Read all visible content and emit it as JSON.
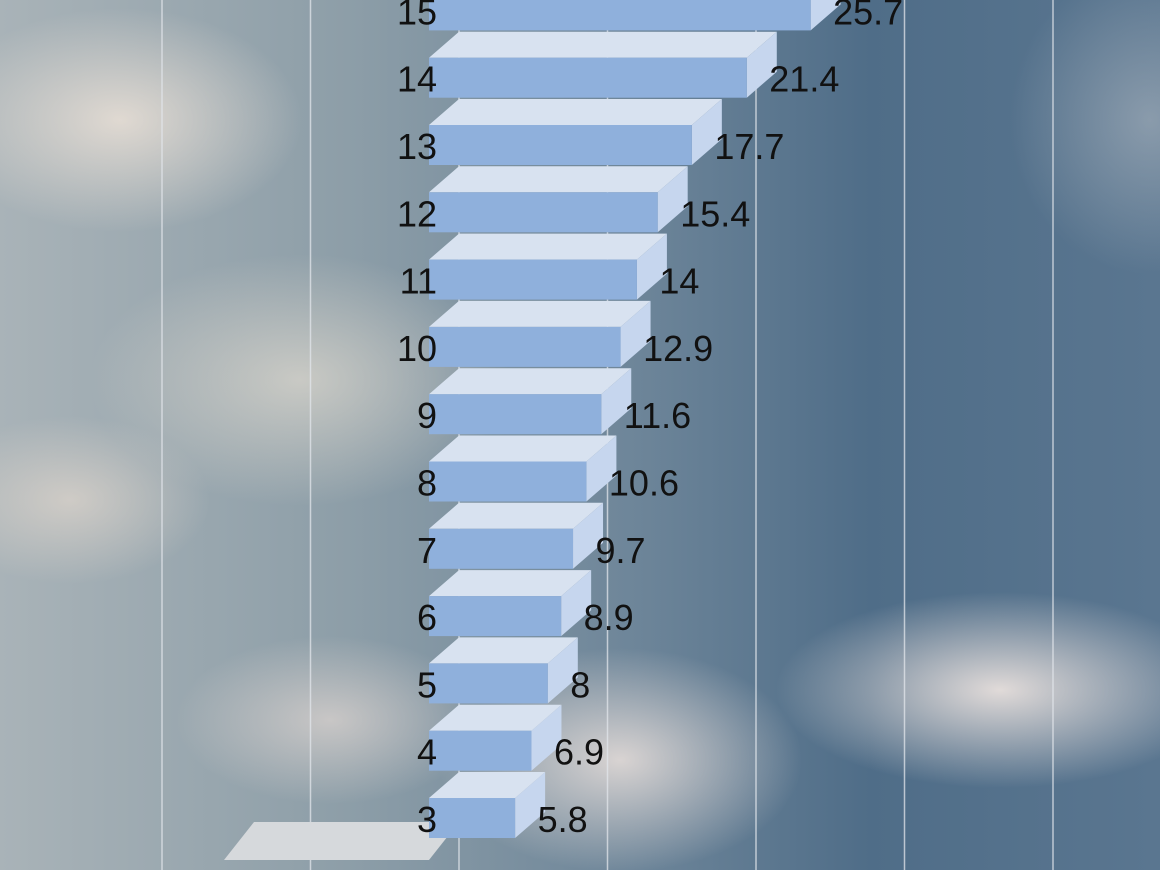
{
  "chart_data": {
    "type": "bar",
    "orientation": "horizontal",
    "style": "3d",
    "categories": [
      "3",
      "4",
      "5",
      "6",
      "7",
      "8",
      "9",
      "10",
      "11",
      "12",
      "13",
      "14",
      "15"
    ],
    "values": [
      5.8,
      6.9,
      8,
      8.9,
      9.7,
      10.6,
      11.6,
      12.9,
      14,
      15.4,
      17.7,
      21.4,
      25.7
    ],
    "xlim": [
      -20,
      40
    ],
    "grid": true,
    "colors": {
      "front": "#8fb0dc",
      "top": "#d8e2f0",
      "side": "#c6d6ee",
      "partial_bar_top": "#d6d9dc"
    }
  }
}
